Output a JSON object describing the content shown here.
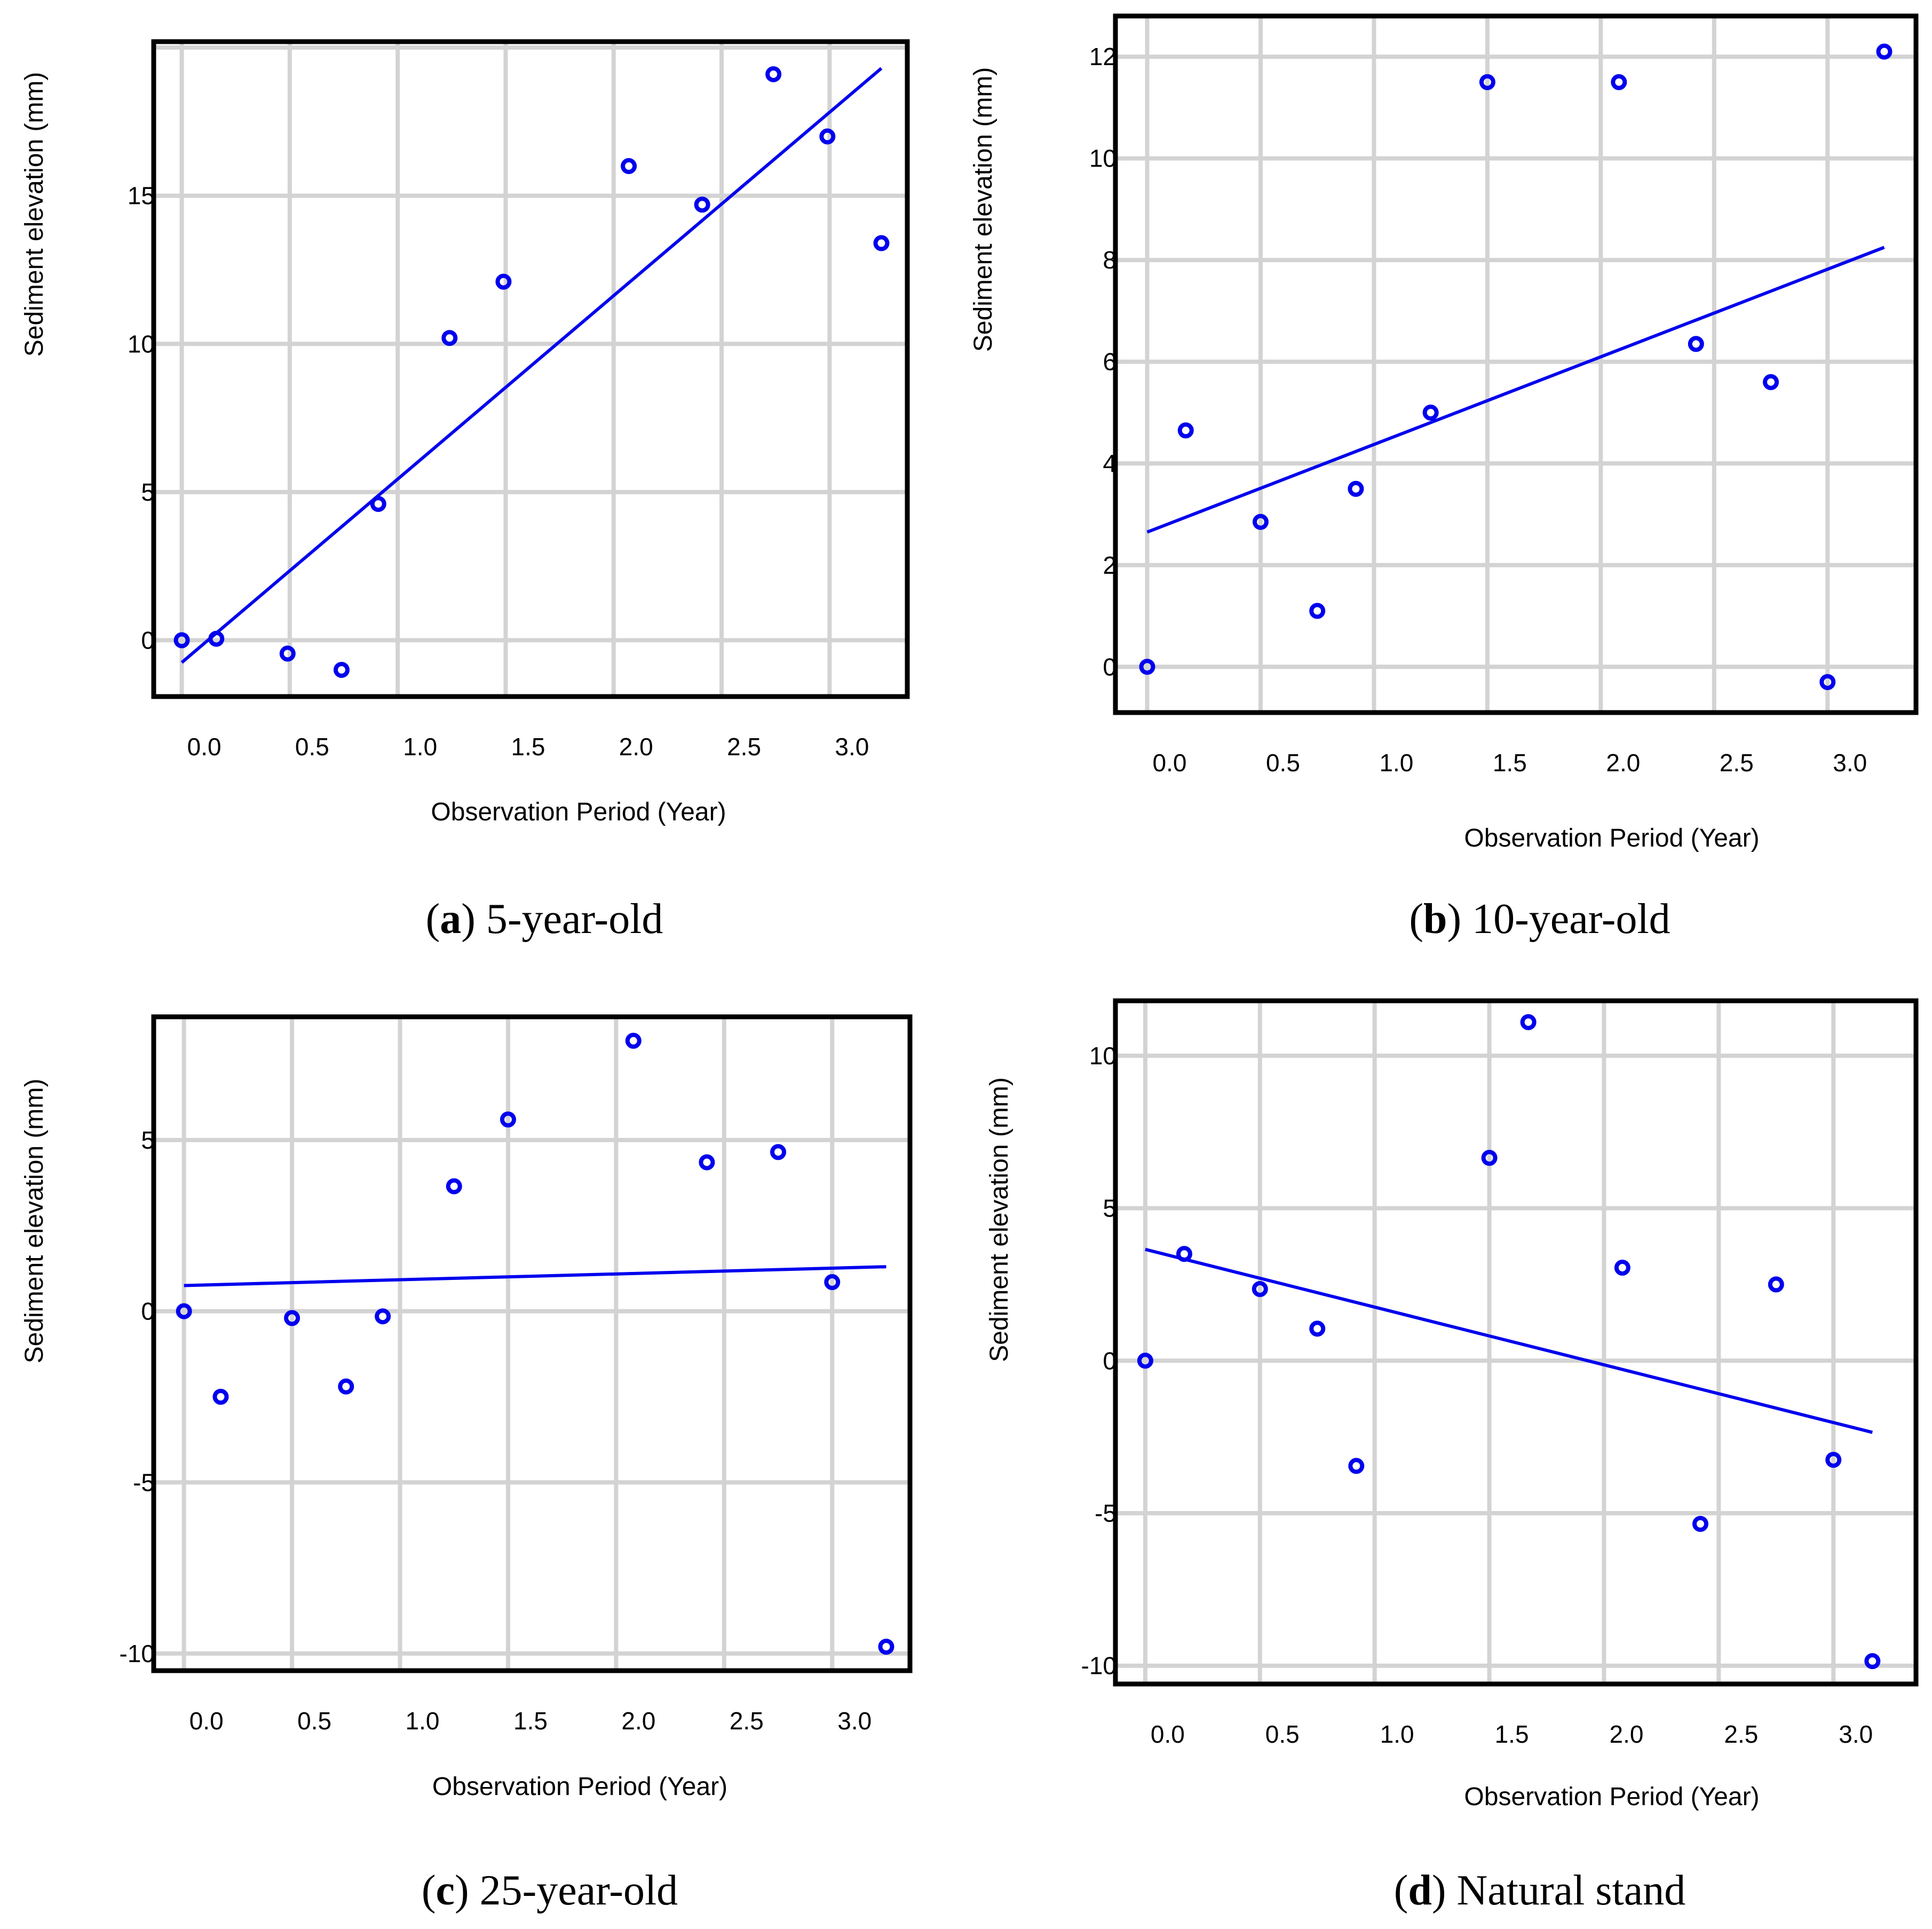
{
  "figure": {
    "colors": {
      "series": "#0000ee",
      "grid": "#d3d3d3",
      "frame": "#000000"
    }
  },
  "chart_data": [
    {
      "type": "scatter",
      "caption_letter": "a",
      "caption_text": "5-year-old",
      "xlabel": "Observation Period (Year)",
      "ylabel": "Sediment elevation (mm)",
      "x_ticks": [
        0.0,
        0.5,
        1.0,
        1.5,
        2.0,
        2.5,
        3.0
      ],
      "x_tick_labels": [
        "0.0",
        "0.5",
        "1.0",
        "1.5",
        "2.0",
        "2.5",
        "3.0"
      ],
      "y_ticks": [
        0,
        5,
        10,
        15
      ],
      "y_tick_labels": [
        "0",
        "5",
        "10",
        "15"
      ],
      "xlim": [
        -0.13,
        3.36
      ],
      "ylim": [
        -1.9,
        20.2
      ],
      "x_grid": [
        0.0,
        0.5,
        1.0,
        1.5,
        2.0,
        2.5,
        3.0
      ],
      "y_grid": [
        0,
        5,
        10,
        15,
        20
      ],
      "points": {
        "x": [
          0.0,
          0.16,
          0.49,
          0.74,
          0.91,
          1.24,
          1.49,
          2.07,
          2.41,
          2.74,
          2.99,
          3.24
        ],
        "y": [
          0.0,
          0.05,
          -0.45,
          -1.0,
          4.6,
          10.2,
          12.1,
          16.0,
          14.7,
          19.1,
          17.0,
          13.4
        ]
      },
      "fit_line": {
        "x": [
          0.0,
          3.24
        ],
        "y": [
          -0.75,
          19.3
        ]
      }
    },
    {
      "type": "scatter",
      "caption_letter": "b",
      "caption_text": "10-year-old",
      "xlabel": "Observation Period (Year)",
      "ylabel": "Sediment elevation (mm)",
      "x_ticks": [
        0.0,
        0.5,
        1.0,
        1.5,
        2.0,
        2.5,
        3.0
      ],
      "x_tick_labels": [
        "0.0",
        "0.5",
        "1.0",
        "1.5",
        "2.0",
        "2.5",
        "3.0"
      ],
      "y_ticks": [
        0,
        2,
        4,
        6,
        8,
        10,
        12
      ],
      "y_tick_labels": [
        "0",
        "2",
        "4",
        "6",
        "8",
        "10",
        "12"
      ],
      "xlim": [
        -0.14,
        3.39
      ],
      "ylim": [
        -0.9,
        12.8
      ],
      "x_grid": [
        0.0,
        0.5,
        1.0,
        1.5,
        2.0,
        2.5,
        3.0
      ],
      "y_grid": [
        0,
        2,
        4,
        6,
        8,
        10,
        12
      ],
      "points": {
        "x": [
          0.0,
          0.17,
          0.5,
          0.75,
          0.92,
          1.25,
          1.5,
          2.08,
          2.42,
          2.75,
          3.0,
          3.25
        ],
        "y": [
          0.0,
          4.65,
          2.85,
          1.1,
          3.5,
          5.0,
          11.5,
          11.5,
          6.35,
          5.6,
          -0.3,
          12.1
        ]
      },
      "fit_line": {
        "x": [
          0.0,
          3.25
        ],
        "y": [
          2.65,
          8.25
        ]
      }
    },
    {
      "type": "scatter",
      "caption_letter": "c",
      "caption_text": "25-year-old",
      "xlabel": "Observation Period (Year)",
      "ylabel": "Sediment elevation (mm)",
      "x_ticks": [
        0.0,
        0.5,
        1.0,
        1.5,
        2.0,
        2.5,
        3.0
      ],
      "x_tick_labels": [
        "0.0",
        "0.5",
        "1.0",
        "1.5",
        "2.0",
        "2.5",
        "3.0"
      ],
      "y_ticks": [
        -10,
        -5,
        0,
        5
      ],
      "y_tick_labels": [
        "-10",
        "-5",
        "0",
        "5"
      ],
      "xlim": [
        -0.14,
        3.36
      ],
      "ylim": [
        -10.5,
        8.6
      ],
      "x_grid": [
        0.0,
        0.5,
        1.0,
        1.5,
        2.0,
        2.5,
        3.0
      ],
      "y_grid": [
        -10,
        -5,
        0,
        5
      ],
      "points": {
        "x": [
          0.0,
          0.17,
          0.5,
          0.75,
          0.92,
          1.25,
          1.5,
          2.08,
          2.42,
          2.75,
          3.0,
          3.25
        ],
        "y": [
          0.0,
          -2.5,
          -0.2,
          -2.2,
          -0.15,
          3.65,
          5.6,
          7.9,
          4.35,
          4.65,
          0.85,
          -9.8
        ]
      },
      "fit_line": {
        "x": [
          0.0,
          3.25
        ],
        "y": [
          0.75,
          1.3
        ]
      }
    },
    {
      "type": "scatter",
      "caption_letter": "d",
      "caption_text": "Natural stand",
      "xlabel": "Observation Period (Year)",
      "ylabel": "Sediment elevation (mm)",
      "x_ticks": [
        0.0,
        0.5,
        1.0,
        1.5,
        2.0,
        2.5,
        3.0
      ],
      "x_tick_labels": [
        "0.0",
        "0.5",
        "1.0",
        "1.5",
        "2.0",
        "2.5",
        "3.0"
      ],
      "y_ticks": [
        -10,
        -5,
        0,
        5,
        10
      ],
      "y_tick_labels": [
        "-10",
        "-5",
        "0",
        "5",
        "10"
      ],
      "xlim": [
        -0.13,
        3.36
      ],
      "ylim": [
        -10.6,
        11.8
      ],
      "x_grid": [
        0.0,
        0.5,
        1.0,
        1.5,
        2.0,
        2.5,
        3.0
      ],
      "y_grid": [
        -10,
        -5,
        0,
        5,
        10
      ],
      "points": {
        "x": [
          0.0,
          0.17,
          0.5,
          0.75,
          0.92,
          1.5,
          1.67,
          2.08,
          2.42,
          2.75,
          3.0,
          3.17
        ],
        "y": [
          0.0,
          3.5,
          2.35,
          1.05,
          -3.45,
          6.65,
          11.1,
          3.05,
          -5.35,
          2.5,
          -3.25,
          -9.85
        ]
      },
      "fit_line": {
        "x": [
          0.0,
          3.17
        ],
        "y": [
          3.65,
          -2.35
        ]
      }
    }
  ]
}
